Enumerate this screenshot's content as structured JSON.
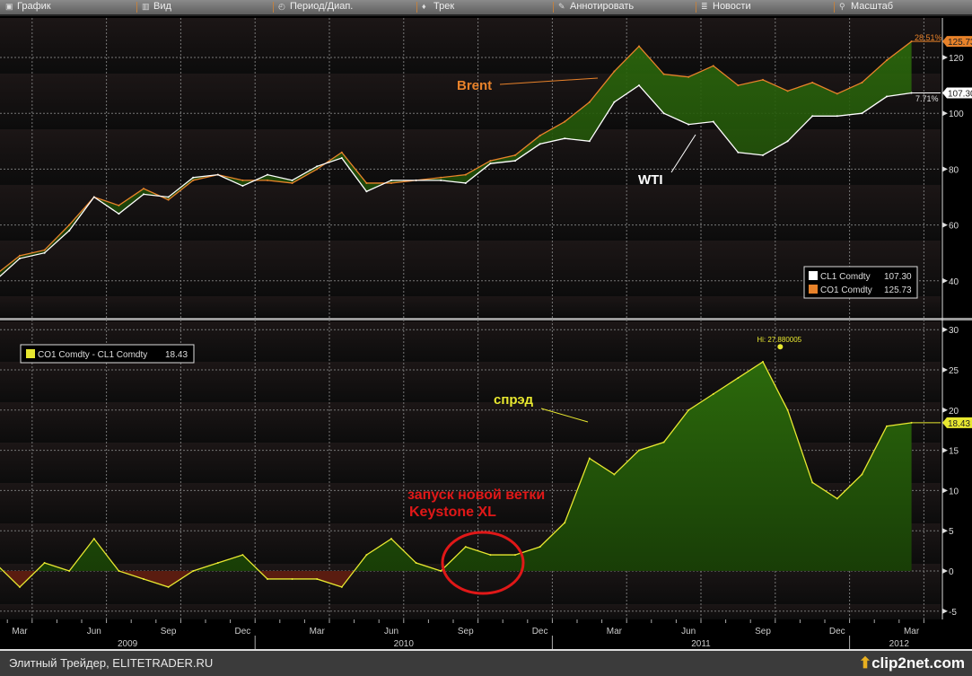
{
  "toolbar": {
    "items": [
      {
        "label": "График",
        "icon": "chart-icon"
      },
      {
        "label": "Вид",
        "icon": "view-icon"
      },
      {
        "label": "Период/Диап.",
        "icon": "period-icon"
      },
      {
        "label": "Трек",
        "icon": "track-icon"
      },
      {
        "label": "Аннотировать",
        "icon": "annotate-pencil-icon"
      },
      {
        "label": "Новости",
        "icon": "news-icon"
      },
      {
        "label": "Масштаб",
        "icon": "zoom-magnifier-icon"
      }
    ]
  },
  "footer": {
    "caption": "Элитный Трейдер, ELITETRADER.RU",
    "logo": "clip2net.com"
  },
  "colors": {
    "brent": "#e8822a",
    "wti": "#ffffff",
    "spread": "#e8e830",
    "fill_pos": "#1f4d08",
    "fill_neg": "#5a1c10",
    "annotation_red": "#e01818",
    "background": "#141010"
  },
  "chart_data": [
    {
      "type": "line",
      "panel": "top",
      "x": [
        "2009-02",
        "2009-03",
        "2009-04",
        "2009-05",
        "2009-06",
        "2009-07",
        "2009-08",
        "2009-09",
        "2009-10",
        "2009-11",
        "2009-12",
        "2010-01",
        "2010-02",
        "2010-03",
        "2010-04",
        "2010-05",
        "2010-06",
        "2010-07",
        "2010-08",
        "2010-09",
        "2010-10",
        "2010-11",
        "2010-12",
        "2011-01",
        "2011-02",
        "2011-03",
        "2011-04",
        "2011-05",
        "2011-06",
        "2011-07",
        "2011-08",
        "2011-09",
        "2011-10",
        "2011-11",
        "2011-12",
        "2012-01",
        "2012-02",
        "2012-03"
      ],
      "series": [
        {
          "name": "CL1 Comdty",
          "last": "107.30",
          "change_label": "7.71%",
          "values": [
            40,
            48,
            50,
            58,
            70,
            64,
            71,
            70,
            77,
            78,
            74,
            78,
            76,
            81,
            84,
            72,
            76,
            76,
            76,
            75,
            82,
            83,
            89,
            91,
            90,
            104,
            110,
            100,
            96,
            97,
            86,
            85,
            90,
            99,
            99,
            100,
            106,
            107.3
          ]
        },
        {
          "name": "CO1 Comdty",
          "last": "125.73",
          "change_label": "28.51%",
          "values": [
            42,
            49,
            51,
            60,
            70,
            67,
            73,
            69,
            76,
            78,
            76,
            76,
            75,
            80,
            86,
            75,
            75,
            76,
            77,
            78,
            83,
            85,
            92,
            97,
            104,
            115,
            124,
            114,
            113,
            117,
            110,
            112,
            108,
            111,
            107,
            111,
            119,
            125.73
          ]
        }
      ],
      "y_ticks": [
        40,
        60,
        80,
        100,
        120
      ],
      "ylim": [
        28,
        130
      ],
      "annotations": [
        "Brent",
        "WTI"
      ],
      "grid": true,
      "legend": "bottom-right"
    },
    {
      "type": "area",
      "panel": "bottom",
      "x": [
        "2009-02",
        "2009-03",
        "2009-04",
        "2009-05",
        "2009-06",
        "2009-07",
        "2009-08",
        "2009-09",
        "2009-10",
        "2009-11",
        "2009-12",
        "2010-01",
        "2010-02",
        "2010-03",
        "2010-04",
        "2010-05",
        "2010-06",
        "2010-07",
        "2010-08",
        "2010-09",
        "2010-10",
        "2010-11",
        "2010-12",
        "2011-01",
        "2011-02",
        "2011-03",
        "2011-04",
        "2011-05",
        "2011-06",
        "2011-07",
        "2011-08",
        "2011-09",
        "2011-10",
        "2011-11",
        "2011-12",
        "2012-01",
        "2012-02",
        "2012-03"
      ],
      "series": [
        {
          "name": "CO1 Comdty - CL1 Comdty",
          "last": "18.43",
          "values": [
            1,
            -2,
            1,
            0,
            4,
            0,
            -1,
            -2,
            0,
            1,
            2,
            -1,
            -1,
            -1,
            -2,
            2,
            4,
            1,
            0,
            3,
            2,
            2,
            3,
            6,
            14,
            12,
            15,
            16,
            20,
            22,
            24,
            26,
            20,
            11,
            9,
            12,
            18,
            18.43
          ]
        }
      ],
      "y_ticks": [
        -5,
        0,
        5,
        10,
        15,
        20,
        25,
        30
      ],
      "ylim": [
        -6,
        30.5
      ],
      "high_label": "Hi: 27.880005",
      "high_value": 27.88,
      "high_date": "2011-10",
      "annotations": [
        "спрэд",
        "запуск новой ветки",
        "Keystone XL"
      ],
      "grid": true,
      "legend": "top-left"
    }
  ],
  "x_axis": {
    "month_labels": [
      "Mar",
      "Jun",
      "Sep",
      "Dec",
      "Mar",
      "Jun",
      "Sep",
      "Dec",
      "Mar",
      "Jun",
      "Sep",
      "Dec",
      "Mar"
    ],
    "year_labels": [
      "2009",
      "2010",
      "2011",
      "2012"
    ]
  }
}
